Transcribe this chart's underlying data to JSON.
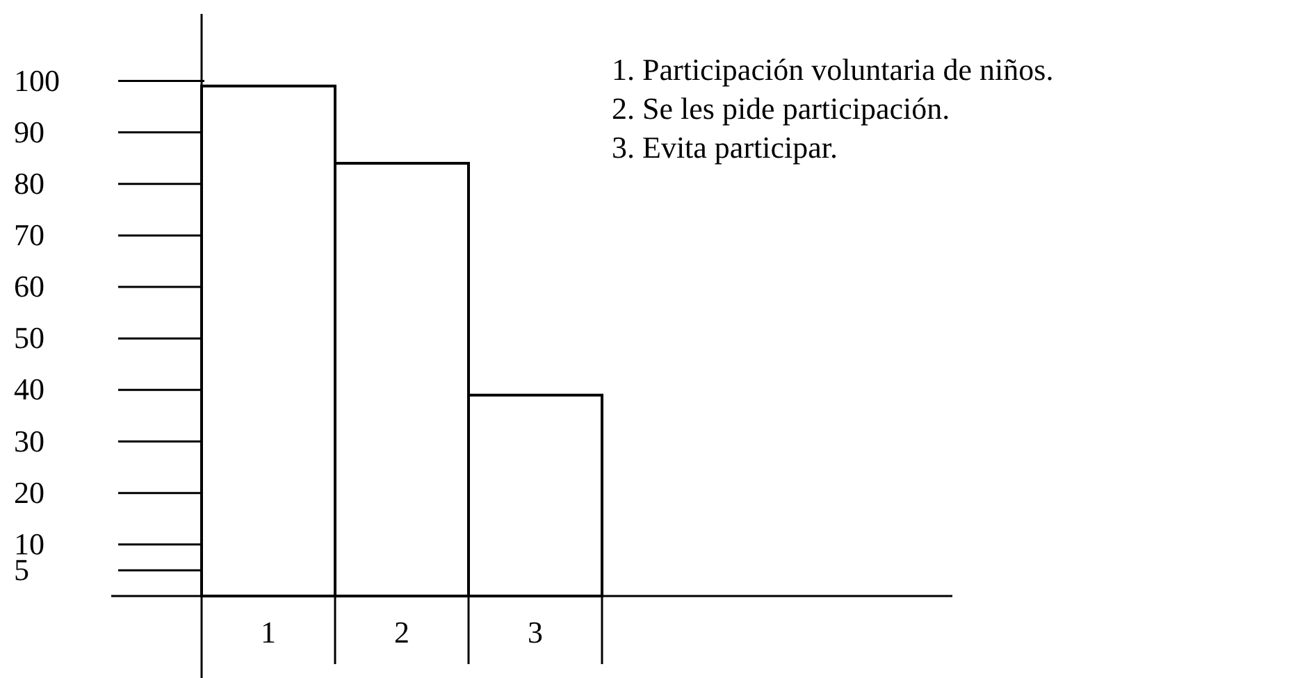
{
  "chart_data": {
    "type": "bar",
    "categories": [
      "1",
      "2",
      "3"
    ],
    "values": [
      99,
      84,
      39
    ],
    "color": "#ffffff",
    "ylim": [
      0,
      113
    ],
    "yticks": [
      5,
      10,
      20,
      30,
      40,
      50,
      60,
      70,
      80,
      90,
      100
    ],
    "grid": false,
    "annotations": [
      "1.  Participación voluntaria de niños.",
      "2.  Se les pide participación.",
      "3.  Evita participar."
    ]
  }
}
